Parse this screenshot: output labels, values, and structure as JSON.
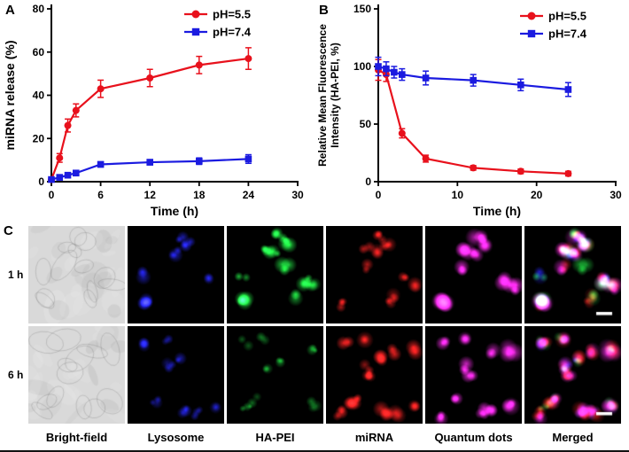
{
  "figure": {
    "panel_a_label": "A",
    "panel_b_label": "B",
    "panel_c_label": "C"
  },
  "chart_data": [
    {
      "type": "line",
      "panel": "A",
      "title": "",
      "xlabel": "Time (h)",
      "ylabel": "miRNA release (%)",
      "xlim": [
        0,
        30
      ],
      "ylim": [
        0,
        80
      ],
      "xticks": [
        0,
        6,
        12,
        18,
        24,
        30
      ],
      "yticks": [
        0,
        20,
        40,
        60,
        80
      ],
      "grid": false,
      "legend_position": "top-right",
      "series": [
        {
          "name": "pH=5.5",
          "color": "#e8111c",
          "marker": "circle",
          "x": [
            0,
            1,
            2,
            3,
            6,
            12,
            18,
            24
          ],
          "y": [
            1,
            11,
            26,
            33,
            43,
            48,
            54,
            57
          ],
          "yerr": [
            1,
            2,
            3,
            3,
            4,
            4,
            4,
            5
          ]
        },
        {
          "name": "pH=7.4",
          "color": "#1b1be0",
          "marker": "square",
          "x": [
            0,
            1,
            2,
            3,
            6,
            12,
            18,
            24
          ],
          "y": [
            1,
            2,
            3,
            4,
            8,
            9,
            9.5,
            10.5
          ],
          "yerr": [
            0.5,
            0.5,
            0.8,
            1,
            1.2,
            1.2,
            1.5,
            2
          ]
        }
      ]
    },
    {
      "type": "line",
      "panel": "B",
      "title": "",
      "xlabel": "Time (h)",
      "ylabel": [
        "Relative Mean Fluorescence",
        "Intensity (HA-PEI, %)"
      ],
      "xlim": [
        0,
        30
      ],
      "ylim": [
        0,
        150
      ],
      "xticks": [
        0,
        10,
        20,
        30
      ],
      "yticks": [
        0,
        50,
        100,
        150
      ],
      "grid": false,
      "legend_position": "top-right",
      "series": [
        {
          "name": "pH=5.5",
          "color": "#e8111c",
          "marker": "circle",
          "x": [
            0,
            1,
            3,
            6,
            12,
            18,
            24
          ],
          "y": [
            97,
            93,
            42,
            20,
            12,
            9,
            7
          ],
          "yerr": [
            9,
            6,
            4,
            3,
            2,
            2,
            2
          ]
        },
        {
          "name": "pH=7.4",
          "color": "#1b1be0",
          "marker": "square",
          "x": [
            0,
            1,
            2,
            3,
            6,
            12,
            18,
            24
          ],
          "y": [
            100,
            98,
            95,
            93,
            90,
            88,
            84,
            80
          ],
          "yerr": [
            8,
            6,
            5,
            5,
            6,
            5,
            5,
            6
          ]
        }
      ]
    }
  ],
  "microscopy": {
    "row_labels": [
      "1 h",
      "6 h"
    ],
    "column_labels": [
      "Bright-field",
      "Lysosome",
      "HA-PEI",
      "miRNA",
      "Quantum dots",
      "Merged"
    ],
    "channel_colors": {
      "lysosome": "#2323dc",
      "ha_pei": "#1fcf3e",
      "mirna": "#d81f1f",
      "quantum_dots": "#e428d8"
    }
  }
}
